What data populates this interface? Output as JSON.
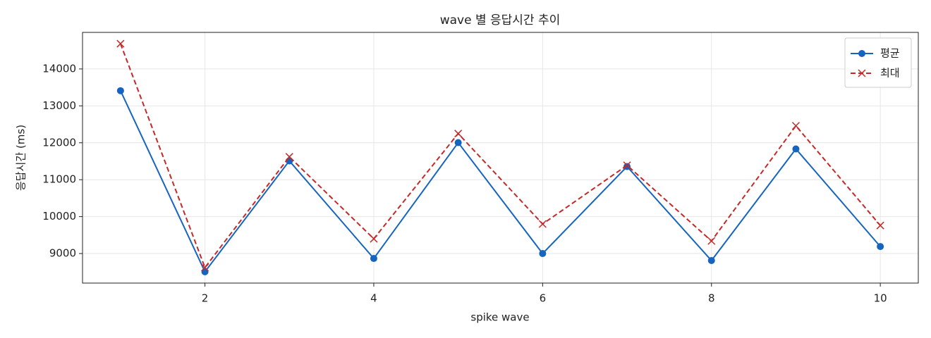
{
  "chart_data": {
    "type": "line",
    "title": "wave 별 응답시간 추이",
    "x_label": "spike wave",
    "y_label": "응답시간 (ms)",
    "x": [
      1,
      2,
      3,
      4,
      5,
      6,
      7,
      8,
      9,
      10
    ],
    "series": [
      {
        "name": "평균",
        "color": "#1565c0",
        "marker": "circle",
        "dash": "solid",
        "values": [
          13410,
          8506,
          11510,
          8867,
          12004,
          9000,
          11357,
          8810,
          11833,
          9190
        ]
      },
      {
        "name": "최대",
        "color": "#c62828",
        "marker": "x",
        "dash": "dashed",
        "values": [
          14684,
          8620,
          11620,
          9400,
          12250,
          9800,
          11390,
          9340,
          12460,
          9760
        ]
      }
    ],
    "xlim": [
      0.55,
      10.45
    ],
    "xticks": [
      2,
      4,
      6,
      8,
      10
    ],
    "ylim": [
      8200,
      14990
    ],
    "yticks": [
      9000,
      10000,
      11000,
      12000,
      13000,
      14000
    ],
    "grid": true,
    "legend": "upper right"
  }
}
